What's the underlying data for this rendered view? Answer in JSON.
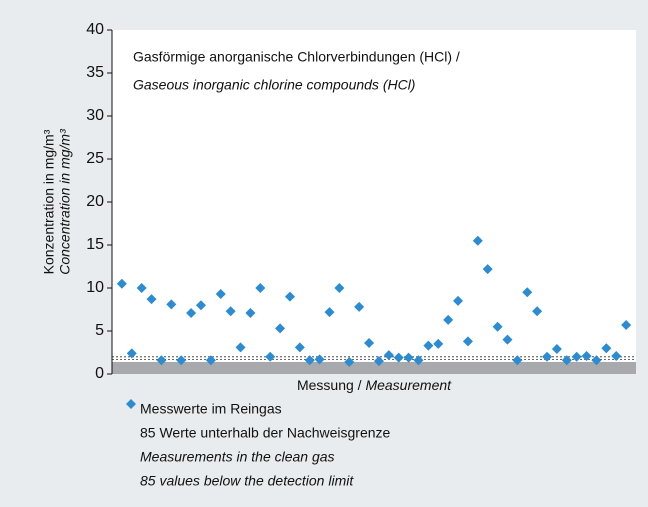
{
  "chart_data": {
    "type": "scatter",
    "title": [
      "Gasförmige anorganische Chlorverbindungen (HCl) /",
      "Gaseous inorganic chlorine compounds (HCl)"
    ],
    "y_label": [
      "Konzentration in mg/m³",
      "Concentration in mg/m³"
    ],
    "x_label": {
      "regular": "Messung /",
      "italic": "Measurement"
    },
    "categories": [
      null,
      null,
      null,
      null,
      null,
      null,
      null,
      null,
      null,
      null,
      null,
      null,
      null,
      null,
      null,
      null,
      null,
      null,
      null,
      null,
      null,
      null,
      null,
      null,
      null,
      null,
      null,
      null,
      null,
      null,
      null,
      null,
      null,
      null,
      null,
      null,
      null,
      null,
      null,
      null,
      null,
      null,
      null,
      null,
      null,
      null,
      null,
      null,
      null,
      null,
      null,
      null
    ],
    "series": [
      {
        "name": "Messwerte im Reingas",
        "color": "#2b8bd3",
        "values": [
          10.5,
          2.4,
          10,
          8.7,
          1.6,
          8.1,
          1.6,
          7.1,
          8.0,
          1.6,
          9.3,
          7.3,
          3.1,
          7.1,
          10,
          2.0,
          5.3,
          9.0,
          3.1,
          1.6,
          1.7,
          7.2,
          10,
          1.4,
          7.8,
          3.6,
          1.5,
          2.2,
          1.9,
          1.9,
          1.6,
          3.3,
          3.5,
          6.3,
          8.5,
          3.8,
          15.5,
          12.2,
          5.5,
          4.0,
          1.6,
          9.5,
          7.3,
          2.0,
          2.9,
          1.6,
          2.0,
          2.1,
          1.6,
          3.0,
          2.1,
          5.7
        ]
      }
    ],
    "legend_notes": [
      "85 Werte unterhalb der Nachweisgrenze",
      "Measurements in the clean gas",
      "85 values below the detection limit"
    ],
    "shaded_band": [
      0,
      1.4
    ],
    "reference_lines": [
      1.7,
      2.0
    ],
    "ylim": [
      0,
      40
    ],
    "yticks": [
      0,
      5,
      10,
      15,
      20,
      25,
      30,
      35,
      40
    ]
  }
}
